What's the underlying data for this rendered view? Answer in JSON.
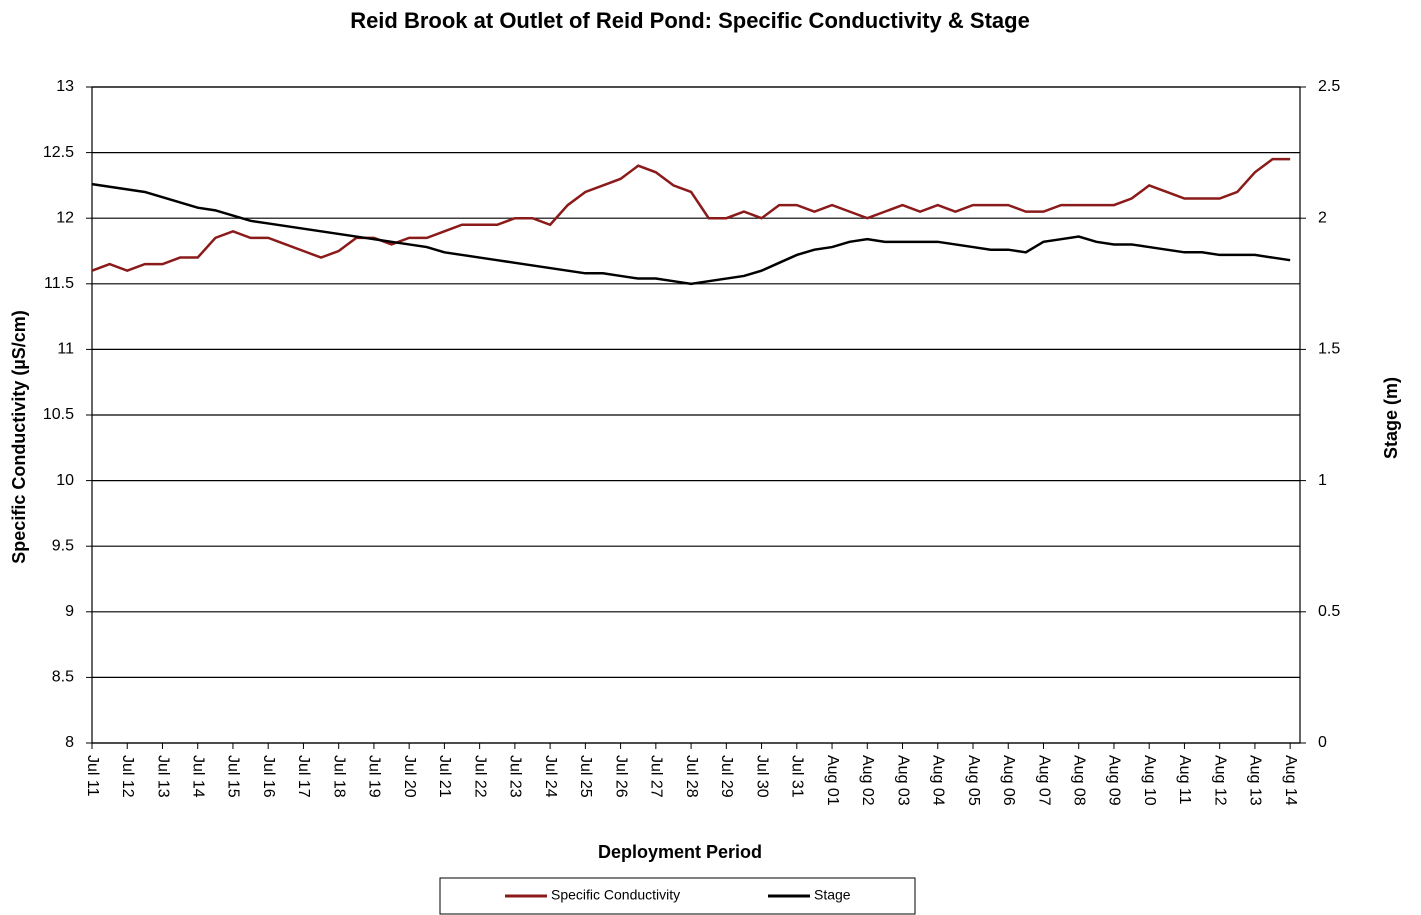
{
  "chart_data": {
    "type": "line",
    "title": "Reid Brook at Outlet of Reid Pond: Specific Conductivity & Stage",
    "x_label": "Deployment Period",
    "y_label": "Specific Conductivity  (µS/cm)",
    "y2_label": "Stage (m)",
    "categories": [
      "Jul 11",
      null,
      "Jul 12",
      null,
      "Jul 13",
      null,
      "Jul 14",
      null,
      "Jul 15",
      null,
      "Jul 16",
      null,
      "Jul 17",
      null,
      "Jul 18",
      null,
      "Jul 19",
      null,
      "Jul 20",
      null,
      "Jul 21",
      null,
      "Jul 22",
      null,
      "Jul 23",
      null,
      "Jul 24",
      null,
      "Jul 25",
      null,
      "Jul 26",
      null,
      "Jul 27",
      null,
      "Jul 28",
      null,
      "Jul 29",
      null,
      "Jul 30",
      null,
      "Jul 31",
      null,
      "Aug 01",
      null,
      "Aug 02",
      null,
      "Aug 03",
      null,
      "Aug 04",
      null,
      "Aug 05",
      null,
      "Aug 06",
      null,
      "Aug 07",
      null,
      "Aug 08",
      null,
      "Aug 09",
      null,
      "Aug 10",
      null,
      "Aug 11",
      null,
      "Aug 12",
      null,
      "Aug 13",
      null,
      "Aug 14"
    ],
    "series": [
      {
        "name": "Specific Conductivity",
        "color": "#8b1a1a",
        "values": [
          11.6,
          11.65,
          11.6,
          11.65,
          11.65,
          11.7,
          11.7,
          11.85,
          11.9,
          11.85,
          11.85,
          11.8,
          11.75,
          11.7,
          11.75,
          11.85,
          11.85,
          11.8,
          11.85,
          11.85,
          11.9,
          11.95,
          11.95,
          11.95,
          12.0,
          12.0,
          11.95,
          12.1,
          12.2,
          12.25,
          12.3,
          12.4,
          12.35,
          12.25,
          12.2,
          12.0,
          12.0,
          12.05,
          12.0,
          12.1,
          12.1,
          12.05,
          12.1,
          12.05,
          12.0,
          12.05,
          12.1,
          12.05,
          12.1,
          12.05,
          12.1,
          12.1,
          12.1,
          12.05,
          12.05,
          12.1,
          12.1,
          12.1,
          12.1,
          12.15,
          12.25,
          12.2,
          12.15,
          12.15,
          12.15,
          12.2,
          12.35,
          12.45,
          12.45
        ]
      },
      {
        "name": "Stage",
        "color": "#000000",
        "axis": "y2",
        "values": [
          2.13,
          2.12,
          2.11,
          2.1,
          2.08,
          2.06,
          2.04,
          2.03,
          2.01,
          1.99,
          1.98,
          1.97,
          1.96,
          1.95,
          1.94,
          1.93,
          1.92,
          1.91,
          1.9,
          1.89,
          1.87,
          1.86,
          1.85,
          1.84,
          1.83,
          1.82,
          1.81,
          1.8,
          1.79,
          1.79,
          1.78,
          1.77,
          1.77,
          1.76,
          1.75,
          1.76,
          1.77,
          1.78,
          1.8,
          1.83,
          1.86,
          1.88,
          1.89,
          1.91,
          1.92,
          1.91,
          1.91,
          1.91,
          1.91,
          1.9,
          1.89,
          1.88,
          1.88,
          1.87,
          1.91,
          1.92,
          1.93,
          1.91,
          1.9,
          1.9,
          1.89,
          1.88,
          1.87,
          1.87,
          1.86,
          1.86,
          1.86,
          1.85,
          1.84
        ]
      }
    ],
    "ylim": [
      8,
      13
    ],
    "yticks": [
      8,
      8.5,
      9,
      9.5,
      10,
      10.5,
      11,
      11.5,
      12,
      12.5,
      13
    ],
    "y2lim": [
      0,
      2.5
    ],
    "y2ticks": [
      0,
      0.5,
      1,
      1.5,
      2,
      2.5
    ],
    "grid": true,
    "legend": "bottom"
  }
}
